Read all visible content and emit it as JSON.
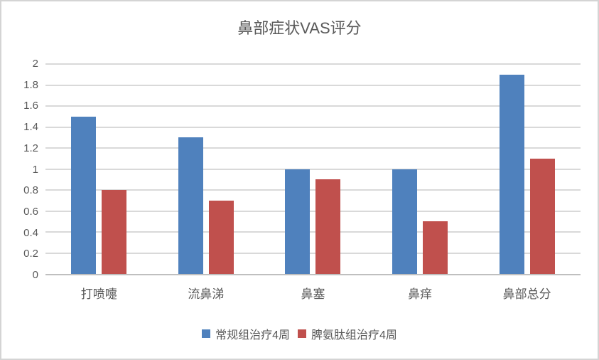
{
  "chart_data": {
    "type": "bar",
    "title": "鼻部症状VAS评分",
    "categories": [
      "打喷嚏",
      "流鼻涕",
      "鼻塞",
      "鼻痒",
      "鼻部总分"
    ],
    "series": [
      {
        "name": "常规组治疗4周",
        "color": "#4F81BD",
        "values": [
          1.5,
          1.3,
          1.0,
          1.0,
          1.9
        ]
      },
      {
        "name": "脾氨肽组治疗4周",
        "color": "#C0504D",
        "values": [
          0.8,
          0.7,
          0.9,
          0.5,
          1.1
        ]
      }
    ],
    "xlabel": "",
    "ylabel": "",
    "ylim": [
      0,
      2
    ],
    "yticks": [
      0,
      0.2,
      0.4,
      0.6,
      0.8,
      1,
      1.2,
      1.4,
      1.6,
      1.8,
      2
    ],
    "ytick_labels": [
      "0",
      "0.2",
      "0.4",
      "0.6",
      "0.8",
      "1",
      "1.2",
      "1.4",
      "1.6",
      "1.8",
      "2"
    ],
    "grid": true,
    "legend_position": "bottom"
  },
  "colors": {
    "background": "#FFFFFF",
    "frame_border": "#D4D4D4",
    "gridline": "#D9D9D9",
    "axis_line": "#BFBFBF",
    "axis_text": "#595959",
    "title_text": "#595959"
  }
}
